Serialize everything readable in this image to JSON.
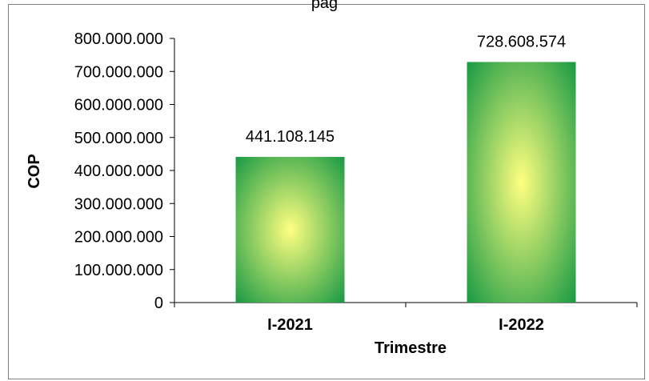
{
  "chart_data": {
    "type": "bar",
    "title": "pag",
    "categories": [
      "I-2021",
      "I-2022"
    ],
    "values": [
      441108145,
      728608574
    ],
    "value_labels": [
      "441.108.145",
      "728.608.574"
    ],
    "xlabel": "Trimestre",
    "ylabel": "COP",
    "ylim": [
      0,
      800000000
    ],
    "yticks": [
      0,
      100000000,
      200000000,
      300000000,
      400000000,
      500000000,
      600000000,
      700000000,
      800000000
    ],
    "ytick_labels": [
      "0",
      "100.000.000",
      "200.000.000",
      "300.000.000",
      "400.000.000",
      "500.000.000",
      "600.000.000",
      "700.000.000",
      "800.000.000"
    ],
    "grid": false,
    "legend": "none",
    "bar_gradient": {
      "center": "#ffff80",
      "edge": "#1a9a44"
    }
  }
}
